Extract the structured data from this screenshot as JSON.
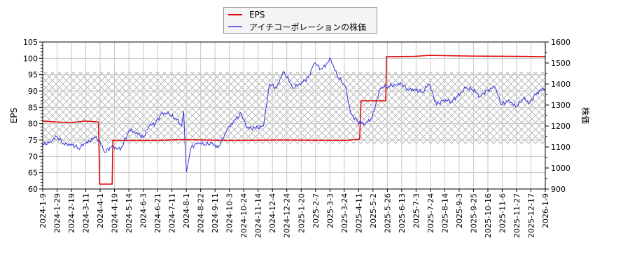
{
  "chart_data": {
    "type": "line",
    "title": "",
    "xlabel": "",
    "ylabel_left": "EPS",
    "ylabel_right": "株価",
    "ylim_left": [
      60,
      105
    ],
    "ylim_right": [
      900,
      1600
    ],
    "yticks_left": [
      "60",
      "65",
      "70",
      "75",
      "80",
      "85",
      "90",
      "95",
      "100",
      "105"
    ],
    "yticks_right": [
      "900",
      "1000",
      "1100",
      "1200",
      "1300",
      "1400",
      "1500",
      "1600"
    ],
    "x_tick_labels": [
      "2024-1-9",
      "2024-1-29",
      "2024-2-19",
      "2024-3-11",
      "2024-4-1",
      "2024-4-19",
      "2024-5-14",
      "2024-6-3",
      "2024-6-21",
      "2024-7-11",
      "2024-8-1",
      "2024-8-22",
      "2024-9-11",
      "2024-10-3",
      "2024-10-24",
      "2024-11-14",
      "2024-12-4",
      "2024-12-24",
      "2025-1-20",
      "2025-2-7",
      "2025-3-3",
      "2025-3-24",
      "2025-4-11",
      "2025-5-2",
      "2025-5-26",
      "2025-6-13",
      "2025-7-3",
      "2025-7-24",
      "2025-8-14",
      "2025-9-3",
      "2025-9-25",
      "2025-10-16",
      "2025-11-6",
      "2025-11-27",
      "2025-12-17",
      "2026-1-9"
    ],
    "grid": true,
    "hatched_band_right_axis": [
      1115,
      1457
    ],
    "legend_position": "top-center",
    "series": [
      {
        "name": "EPS",
        "axis": "left",
        "color": "#dd0000",
        "x": [
          "2024-1-9",
          "2024-1-29",
          "2024-2-19",
          "2024-3-11",
          "2024-3-30",
          "2024-4-1",
          "2024-4-19",
          "2024-4-20",
          "2024-6-21",
          "2024-8-1",
          "2024-10-3",
          "2024-12-24",
          "2025-3-24",
          "2025-4-14",
          "2025-4-16",
          "2025-5-22",
          "2025-5-23",
          "2025-7-3",
          "2025-7-24",
          "2025-9-25",
          "2025-11-27",
          "2026-1-9"
        ],
        "values": [
          80.8,
          80.5,
          80.3,
          80.8,
          80.5,
          61.5,
          61.5,
          74.9,
          74.9,
          75.1,
          74.9,
          75.0,
          74.9,
          75.2,
          87.0,
          87.0,
          100.5,
          100.6,
          100.9,
          100.7,
          100.6,
          100.5
        ]
      },
      {
        "name": "アイチコーポレーションの株価",
        "axis": "right",
        "color": "#3333dd",
        "x": [
          "2024-1-9",
          "2024-1-20",
          "2024-1-29",
          "2024-2-10",
          "2024-2-19",
          "2024-3-1",
          "2024-3-11",
          "2024-3-25",
          "2024-4-1",
          "2024-4-8",
          "2024-4-19",
          "2024-5-1",
          "2024-5-14",
          "2024-5-25",
          "2024-6-3",
          "2024-6-12",
          "2024-6-21",
          "2024-7-1",
          "2024-7-11",
          "2024-7-22",
          "2024-7-29",
          "2024-8-1",
          "2024-8-5",
          "2024-8-12",
          "2024-8-22",
          "2024-9-1",
          "2024-9-11",
          "2024-9-20",
          "2024-10-3",
          "2024-10-14",
          "2024-10-24",
          "2024-11-1",
          "2024-11-14",
          "2024-11-25",
          "2024-12-4",
          "2024-12-14",
          "2024-12-24",
          "2025-1-8",
          "2025-1-20",
          "2025-1-29",
          "2025-2-7",
          "2025-2-18",
          "2025-3-3",
          "2025-3-12",
          "2025-3-24",
          "2025-4-1",
          "2025-4-11",
          "2025-4-22",
          "2025-5-2",
          "2025-5-14",
          "2025-5-26",
          "2025-6-5",
          "2025-6-13",
          "2025-6-24",
          "2025-7-3",
          "2025-7-14",
          "2025-7-24",
          "2025-8-4",
          "2025-8-14",
          "2025-8-25",
          "2025-9-3",
          "2025-9-15",
          "2025-9-25",
          "2025-10-6",
          "2025-10-16",
          "2025-10-28",
          "2025-11-6",
          "2025-11-17",
          "2025-11-27",
          "2025-12-8",
          "2025-12-17",
          "2025-12-28",
          "2026-1-9"
        ],
        "values": [
          1110,
          1125,
          1150,
          1110,
          1115,
          1095,
          1115,
          1145,
          1130,
          1075,
          1105,
          1085,
          1180,
          1170,
          1145,
          1200,
          1215,
          1265,
          1255,
          1230,
          1200,
          1270,
          980,
          1100,
          1120,
          1110,
          1120,
          1095,
          1180,
          1230,
          1260,
          1190,
          1190,
          1200,
          1400,
          1380,
          1460,
          1380,
          1410,
          1430,
          1500,
          1470,
          1520,
          1440,
          1390,
          1260,
          1220,
          1210,
          1240,
          1380,
          1390,
          1395,
          1405,
          1370,
          1375,
          1360,
          1400,
          1300,
          1325,
          1315,
          1340,
          1380,
          1375,
          1340,
          1370,
          1385,
          1300,
          1325,
          1290,
          1330,
          1310,
          1360,
          1380
        ]
      }
    ]
  },
  "legend": {
    "items": [
      {
        "label": "EPS",
        "color": "#dd0000"
      },
      {
        "label": "アイチコーポレーションの株価",
        "color": "#6666ee"
      }
    ]
  },
  "axes": {
    "left_title": "EPS",
    "right_title": "株価"
  }
}
